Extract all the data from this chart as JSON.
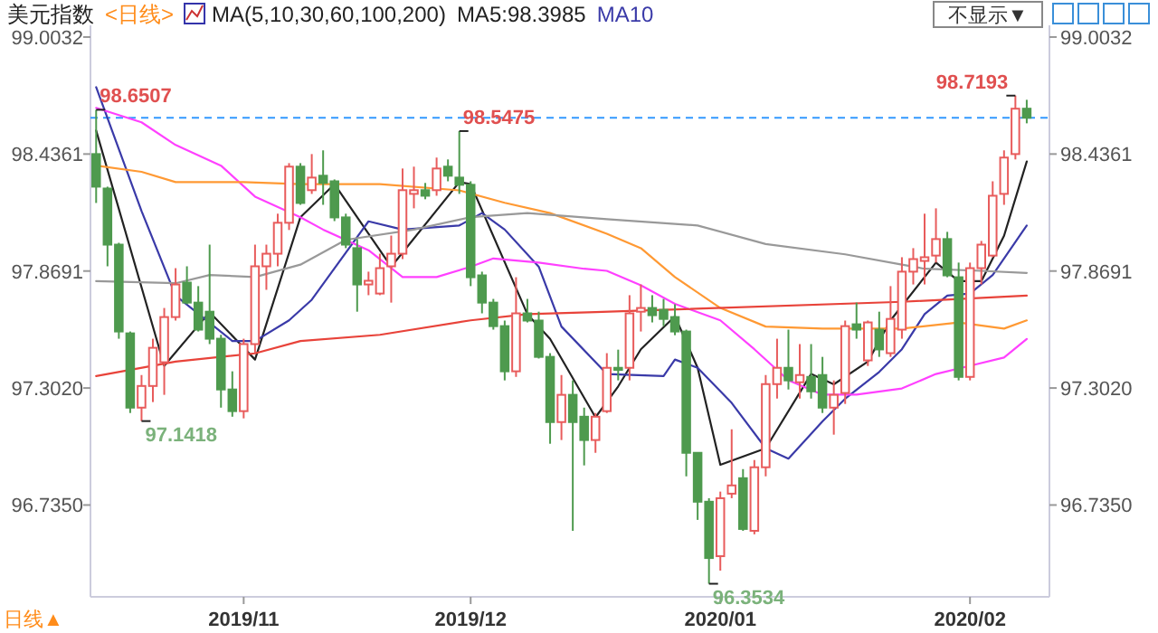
{
  "chart_data": {
    "type": "candlestick",
    "title": "美元指数",
    "subtitle": "<日线>",
    "categories": [
      null,
      null,
      null,
      null,
      null,
      null,
      null,
      null,
      null,
      null,
      null,
      null,
      null,
      "2019/11",
      null,
      null,
      null,
      null,
      null,
      null,
      null,
      null,
      null,
      null,
      null,
      null,
      null,
      null,
      null,
      null,
      null,
      null,
      null,
      "2019/12",
      null,
      null,
      null,
      null,
      null,
      null,
      null,
      null,
      null,
      null,
      null,
      null,
      null,
      null,
      null,
      null,
      null,
      null,
      null,
      null,
      null,
      "2020/01",
      null,
      null,
      null,
      null,
      null,
      null,
      null,
      null,
      null,
      null,
      null,
      null,
      null,
      null,
      null,
      null,
      null,
      null,
      null,
      null,
      null,
      "2020/02",
      null,
      null,
      null,
      null,
      null
    ],
    "ohlc": [
      [
        98.436,
        98.6507,
        98.199,
        98.278
      ],
      [
        98.269,
        98.278,
        97.892,
        97.997
      ],
      [
        97.997,
        98.006,
        97.541,
        97.576
      ],
      [
        97.567,
        97.576,
        97.181,
        97.207
      ],
      [
        97.207,
        97.365,
        97.1418,
        97.312
      ],
      [
        97.312,
        97.541,
        97.234,
        97.497
      ],
      [
        97.427,
        97.69,
        97.269,
        97.646
      ],
      [
        97.646,
        97.883,
        97.629,
        97.804
      ],
      [
        97.813,
        97.892,
        97.708,
        97.716
      ],
      [
        97.716,
        97.796,
        97.576,
        97.585
      ],
      [
        97.672,
        97.997,
        97.515,
        97.541
      ],
      [
        97.541,
        97.56,
        97.207,
        97.295
      ],
      [
        97.295,
        97.383,
        97.163,
        97.19
      ],
      [
        97.19,
        97.541,
        97.155,
        97.515
      ],
      [
        97.515,
        97.997,
        97.471,
        97.892
      ],
      [
        97.892,
        97.997,
        97.778,
        97.953
      ],
      [
        97.953,
        98.147,
        97.892,
        98.103
      ],
      [
        98.103,
        98.392,
        98.068,
        98.375
      ],
      [
        98.375,
        98.392,
        98.19,
        98.199
      ],
      [
        98.261,
        98.436,
        98.243,
        98.322
      ],
      [
        98.331,
        98.454,
        98.19,
        98.296
      ],
      [
        98.304,
        98.313,
        98.111,
        98.129
      ],
      [
        98.129,
        98.147,
        97.98,
        97.997
      ],
      [
        97.98,
        98.024,
        97.672,
        97.804
      ],
      [
        97.804,
        97.866,
        97.752,
        97.822
      ],
      [
        97.76,
        97.953,
        97.752,
        97.883
      ],
      [
        97.892,
        98.041,
        97.716,
        97.953
      ],
      [
        97.953,
        98.366,
        97.927,
        98.261
      ],
      [
        98.243,
        98.375,
        98.173,
        98.261
      ],
      [
        98.261,
        98.296,
        98.217,
        98.234
      ],
      [
        98.261,
        98.419,
        98.234,
        98.366
      ],
      [
        98.375,
        98.41,
        98.304,
        98.331
      ],
      [
        98.322,
        98.5475,
        98.243,
        98.287
      ],
      [
        98.287,
        98.304,
        97.796,
        97.839
      ],
      [
        97.848,
        97.866,
        97.664,
        97.716
      ],
      [
        97.716,
        97.734,
        97.585,
        97.602
      ],
      [
        97.602,
        97.629,
        97.339,
        97.383
      ],
      [
        97.383,
        97.839,
        97.356,
        97.664
      ],
      [
        97.664,
        97.734,
        97.62,
        97.629
      ],
      [
        97.629,
        97.672,
        97.445,
        97.453
      ],
      [
        97.453,
        97.471,
        97.032,
        97.137
      ],
      [
        97.137,
        97.365,
        97.05,
        97.269
      ],
      [
        97.269,
        97.339,
        96.61,
        97.137
      ],
      [
        97.163,
        97.207,
        96.927,
        97.05
      ],
      [
        97.05,
        97.181,
        96.988,
        97.163
      ],
      [
        97.19,
        97.471,
        97.181,
        97.4
      ],
      [
        97.4,
        97.488,
        97.339,
        97.39
      ],
      [
        97.4,
        97.752,
        97.339,
        97.664
      ],
      [
        97.672,
        97.804,
        97.576,
        97.69
      ],
      [
        97.69,
        97.752,
        97.62,
        97.655
      ],
      [
        97.681,
        97.734,
        97.602,
        97.637
      ],
      [
        97.646,
        97.708,
        97.558,
        97.576
      ],
      [
        97.576,
        97.585,
        96.874,
        96.988
      ],
      [
        96.988,
        96.988,
        96.663,
        96.751
      ],
      [
        96.751,
        96.768,
        96.3534,
        96.478
      ],
      [
        96.487,
        96.8,
        96.417,
        96.768
      ],
      [
        96.79,
        97.102,
        96.768,
        96.83
      ],
      [
        96.865,
        96.909,
        96.61,
        96.619
      ],
      [
        96.61,
        96.953,
        96.593,
        96.918
      ],
      [
        96.918,
        97.365,
        96.874,
        97.321
      ],
      [
        97.321,
        97.541,
        97.251,
        97.4
      ],
      [
        97.4,
        97.585,
        97.295,
        97.339
      ],
      [
        97.33,
        97.515,
        97.251,
        97.365
      ],
      [
        97.356,
        97.515,
        97.251,
        97.286
      ],
      [
        97.365,
        97.453,
        97.181,
        97.207
      ],
      [
        97.207,
        97.339,
        97.076,
        97.269
      ],
      [
        97.278,
        97.629,
        97.225,
        97.602
      ],
      [
        97.611,
        97.716,
        97.541,
        97.585
      ],
      [
        97.436,
        97.629,
        97.409,
        97.62
      ],
      [
        97.585,
        97.672,
        97.453,
        97.489
      ],
      [
        97.471,
        97.796,
        97.453,
        97.637
      ],
      [
        97.585,
        97.936,
        97.541,
        97.866
      ],
      [
        97.866,
        97.98,
        97.804,
        97.927
      ],
      [
        97.918,
        98.147,
        97.804,
        97.936
      ],
      [
        97.944,
        98.173,
        97.91,
        98.024
      ],
      [
        98.024,
        98.059,
        97.839,
        97.848
      ],
      [
        97.839,
        97.91,
        97.339,
        97.356
      ],
      [
        97.356,
        97.91,
        97.339,
        97.883
      ],
      [
        97.883,
        98.015,
        97.804,
        97.997
      ],
      [
        97.944,
        98.304,
        97.936,
        98.234
      ],
      [
        98.243,
        98.454,
        98.19,
        98.419
      ],
      [
        98.436,
        98.7193,
        98.41,
        98.656
      ],
      [
        98.656,
        98.699,
        98.585,
        98.612
      ]
    ],
    "series": [
      {
        "type": "line",
        "name": "MA5:98.3985",
        "color": "#222222",
        "values": [
          98.55,
          null,
          null,
          null,
          null,
          null,
          97.41,
          null,
          null,
          null,
          97.67,
          null,
          null,
          null,
          97.44,
          null,
          null,
          null,
          98.13,
          null,
          null,
          98.29,
          null,
          null,
          null,
          null,
          97.89,
          null,
          null,
          null,
          null,
          null,
          98.3,
          98.29,
          null,
          null,
          null,
          null,
          97.66,
          null,
          97.54,
          null,
          null,
          null,
          97.16,
          null,
          97.31,
          null,
          97.49,
          null,
          null,
          97.65,
          null,
          97.4,
          null,
          96.93,
          null,
          null,
          null,
          97.01,
          null,
          null,
          null,
          97.37,
          null,
          97.32,
          null,
          null,
          97.43,
          null,
          97.63,
          null,
          null,
          null,
          97.91,
          null,
          97.82,
          null,
          97.82,
          null,
          98.04,
          null,
          98.4
        ]
      },
      {
        "type": "line",
        "name": "MA10",
        "color": "#3a3aa8",
        "values": [
          98.76,
          null,
          null,
          null,
          98.16,
          null,
          null,
          97.75,
          null,
          null,
          null,
          null,
          97.53,
          null,
          97.53,
          null,
          null,
          97.63,
          null,
          97.73,
          null,
          null,
          null,
          null,
          98.11,
          null,
          null,
          98.07,
          null,
          null,
          null,
          null,
          98.09,
          null,
          98.15,
          null,
          98.07,
          null,
          null,
          97.89,
          null,
          97.6,
          null,
          null,
          null,
          97.37,
          null,
          null,
          null,
          null,
          97.36,
          97.44,
          null,
          97.4,
          null,
          null,
          97.23,
          null,
          null,
          97.01,
          null,
          96.96,
          null,
          null,
          97.14,
          null,
          97.25,
          null,
          null,
          97.38,
          null,
          97.49,
          null,
          97.66,
          null,
          97.75,
          null,
          97.76,
          null,
          97.85,
          null,
          null,
          98.09
        ]
      },
      {
        "type": "line",
        "color": "#ff40ff",
        "values": [
          98.66,
          null,
          null,
          null,
          98.59,
          null,
          null,
          98.48,
          null,
          null,
          null,
          98.38,
          null,
          null,
          98.23,
          null,
          null,
          null,
          98.13,
          null,
          98.07,
          null,
          null,
          null,
          97.97,
          null,
          null,
          97.84,
          null,
          null,
          97.84,
          null,
          null,
          97.89,
          null,
          97.93,
          null,
          null,
          null,
          97.91,
          null,
          null,
          null,
          97.88,
          null,
          97.87,
          null,
          null,
          97.8,
          null,
          null,
          97.71,
          null,
          null,
          null,
          97.63,
          null,
          null,
          97.49,
          null,
          null,
          97.34,
          null,
          null,
          97.27,
          null,
          null,
          97.27,
          null,
          null,
          null,
          97.3,
          null,
          null,
          97.37,
          null,
          null,
          97.41,
          null,
          null,
          97.45,
          null,
          97.54
        ]
      },
      {
        "type": "line",
        "color": "#ff9933",
        "values": [
          98.38,
          null,
          null,
          null,
          98.35,
          null,
          null,
          98.3,
          null,
          null,
          null,
          null,
          null,
          98.3,
          null,
          null,
          null,
          null,
          98.29,
          null,
          null,
          null,
          null,
          null,
          null,
          98.29,
          null,
          null,
          null,
          null,
          null,
          null,
          98.26,
          null,
          null,
          null,
          98.2,
          null,
          null,
          null,
          98.15,
          null,
          null,
          null,
          null,
          98.05,
          null,
          null,
          97.98,
          null,
          null,
          97.84,
          null,
          null,
          null,
          97.69,
          null,
          null,
          null,
          97.6,
          null,
          null,
          null,
          null,
          97.59,
          null,
          null,
          null,
          null,
          null,
          null,
          97.59,
          null,
          null,
          null,
          null,
          97.62,
          null,
          null,
          null,
          97.59,
          null,
          97.63
        ]
      },
      {
        "type": "line",
        "color": "#999999",
        "values": [
          97.82,
          null,
          null,
          null,
          null,
          null,
          null,
          97.81,
          null,
          null,
          97.85,
          null,
          null,
          null,
          97.84,
          null,
          null,
          null,
          97.9,
          null,
          null,
          null,
          98.02,
          null,
          null,
          null,
          null,
          null,
          98.07,
          null,
          null,
          null,
          null,
          98.13,
          null,
          null,
          null,
          null,
          98.15,
          null,
          null,
          null,
          null,
          null,
          null,
          98.12,
          null,
          null,
          null,
          null,
          null,
          null,
          null,
          98.09,
          null,
          null,
          null,
          null,
          null,
          98.0,
          null,
          null,
          null,
          null,
          null,
          null,
          97.95,
          null,
          null,
          null,
          null,
          97.9,
          null,
          97.88,
          null,
          null,
          null,
          null,
          97.87,
          null,
          null,
          null,
          97.86
        ]
      },
      {
        "type": "line",
        "color": "#e8433a",
        "values": [
          97.36,
          null,
          null,
          null,
          null,
          null,
          null,
          97.43,
          null,
          null,
          null,
          null,
          null,
          null,
          97.47,
          null,
          null,
          null,
          97.53,
          null,
          null,
          null,
          null,
          null,
          null,
          97.56,
          null,
          null,
          null,
          null,
          null,
          null,
          null,
          97.63,
          null,
          null,
          null,
          null,
          97.66,
          null,
          null,
          null,
          null,
          null,
          97.67,
          null,
          null,
          null,
          null,
          null,
          null,
          null,
          null,
          null,
          null,
          null,
          null,
          null,
          null,
          null,
          null,
          null,
          null,
          null,
          null,
          null,
          null,
          null,
          null,
          null,
          null,
          97.72,
          null,
          null,
          null,
          null,
          null,
          null,
          null,
          null,
          null,
          null,
          97.75
        ]
      }
    ],
    "ylim": [
      96.29,
      99.06
    ],
    "yticks": [
      99.0032,
      98.4361,
      97.8691,
      {
        "value": 97.302,
        "label": "97.3020"
      },
      {
        "value": 96.735,
        "label": "96.7350"
      }
    ],
    "y2lim": [
      96.29,
      99.06
    ],
    "y2ticks": [
      99.0032,
      98.4361,
      97.8691,
      {
        "value": 97.302,
        "label": "97.3020"
      },
      {
        "value": 96.735,
        "label": "96.7350"
      }
    ],
    "ref_lines": [
      {
        "axis": "y",
        "value": 98.612,
        "color": "#3399ff",
        "line_style": "dashed"
      }
    ],
    "legend": "top",
    "annotations": [
      "MA(5,10,30,60,100,200)",
      "不显示▼",
      "日线▲",
      "98.6507",
      "97.1418",
      "98.5475",
      "96.3534",
      "98.7193"
    ]
  }
}
